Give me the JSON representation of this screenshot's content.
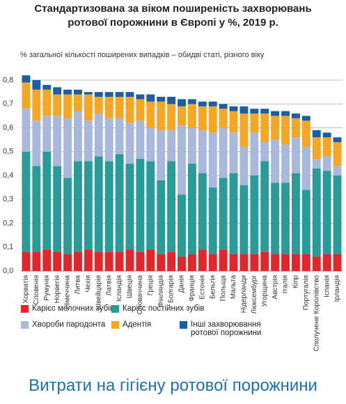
{
  "chart_data": {
    "type": "stacked_bar",
    "title": "Стандартизована за віком поширеність захворювань ротової порожнини в Європі у %, 2019 р.",
    "subtitle": "% загальної кількості поширених випадків – обидві статі, різного віку",
    "footer_heading": "Витрати на гігієну ротової порожнини",
    "categories": [
      "Хорватія",
      "Словенія",
      "Румунія",
      "Норвегія",
      "Німеччина",
      "Литва",
      "Чехія",
      "Швейцарія",
      "Латвія",
      "Ісландія",
      "Швеція",
      "Словаччина",
      "Греція",
      "Фінляндія",
      "Болгарія",
      "Данія",
      "Франція",
      "Естонія",
      "Бельгія",
      "Польща",
      "Мальта",
      "Нідерланди",
      "Люксембург",
      "Угорщина",
      "Австрія",
      "Італія",
      "Кіпр",
      "Португалія",
      "Сполучене Королівство",
      "Іспанія",
      "Ірландія"
    ],
    "series": [
      {
        "name": "Карієс молочних зубів",
        "color": "#e3262b",
        "values": [
          0.08,
          0.08,
          0.09,
          0.08,
          0.07,
          0.08,
          0.09,
          0.08,
          0.08,
          0.08,
          0.09,
          0.08,
          0.09,
          0.07,
          0.08,
          0.06,
          0.07,
          0.09,
          0.07,
          0.09,
          0.07,
          0.07,
          0.07,
          0.08,
          0.07,
          0.07,
          0.07,
          0.07,
          0.06,
          0.07,
          0.07
        ]
      },
      {
        "name": "Карієс постійних зубів",
        "color": "#2a9c97",
        "values": [
          0.42,
          0.36,
          0.41,
          0.36,
          0.32,
          0.38,
          0.37,
          0.4,
          0.38,
          0.41,
          0.36,
          0.39,
          0.37,
          0.31,
          0.38,
          0.26,
          0.38,
          0.32,
          0.28,
          0.3,
          0.34,
          0.29,
          0.33,
          0.38,
          0.3,
          0.3,
          0.34,
          0.27,
          0.37,
          0.35,
          0.33
        ]
      },
      {
        "name": "Хвороби пародонта",
        "color": "#a9b9dd",
        "values": [
          0.18,
          0.19,
          0.15,
          0.21,
          0.25,
          0.21,
          0.17,
          0.18,
          0.18,
          0.15,
          0.17,
          0.16,
          0.14,
          0.21,
          0.13,
          0.29,
          0.15,
          0.18,
          0.23,
          0.21,
          0.17,
          0.16,
          0.18,
          0.08,
          0.18,
          0.16,
          0.15,
          0.18,
          0.04,
          0.06,
          0.04
        ]
      },
      {
        "name": "Адентія",
        "color": "#f5a623",
        "values": [
          0.11,
          0.13,
          0.11,
          0.09,
          0.1,
          0.07,
          0.11,
          0.07,
          0.09,
          0.09,
          0.11,
          0.09,
          0.11,
          0.12,
          0.11,
          0.08,
          0.1,
          0.1,
          0.11,
          0.08,
          0.09,
          0.14,
          0.08,
          0.12,
          0.1,
          0.12,
          0.08,
          0.11,
          0.09,
          0.08,
          0.1
        ]
      },
      {
        "name": "Інші захворювання ротової порожнини",
        "color": "#1b5ea6",
        "values": [
          0.03,
          0.04,
          0.02,
          0.03,
          0.02,
          0.02,
          0.01,
          0.02,
          0.02,
          0.02,
          0.02,
          0.02,
          0.03,
          0.02,
          0.03,
          0.03,
          0.02,
          0.02,
          0.02,
          0.02,
          0.02,
          0.03,
          0.02,
          0.02,
          0.02,
          0.02,
          0.02,
          0.02,
          0.03,
          0.02,
          0.02
        ]
      }
    ],
    "ylim": [
      0,
      0.8
    ],
    "yticks": [
      {
        "value": 0,
        "label": "0,0"
      },
      {
        "value": 0.1,
        "label": "0,1"
      },
      {
        "value": 0.2,
        "label": "0,2"
      },
      {
        "value": 0.3,
        "label": "0,3"
      },
      {
        "value": 0.4,
        "label": "0,4"
      },
      {
        "value": 0.5,
        "label": "0,5"
      },
      {
        "value": 0.6,
        "label": "0,6"
      },
      {
        "value": 0.7,
        "label": "0,7"
      },
      {
        "value": 0.8,
        "label": "0,8"
      }
    ],
    "grid": true
  }
}
